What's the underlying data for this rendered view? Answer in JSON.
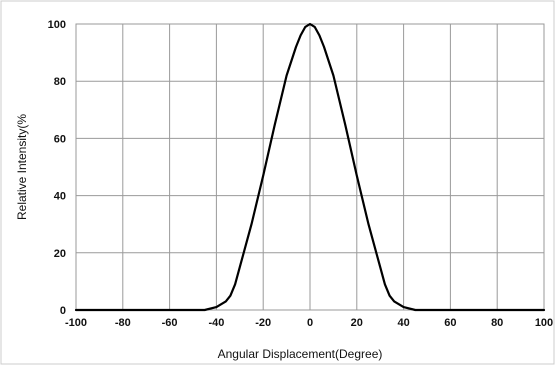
{
  "chart_data": {
    "type": "line",
    "title": "",
    "xlabel": "Angular  Displacement(Degree)",
    "ylabel": "Relative  Intensity(%",
    "xlim": [
      -100,
      100
    ],
    "ylim": [
      0,
      100
    ],
    "x_ticks": [
      "-100",
      "-80",
      "-60",
      "-40",
      "-20",
      "0",
      "20",
      "40",
      "60",
      "80",
      "100"
    ],
    "y_ticks": [
      "0",
      "20",
      "40",
      "60",
      "80",
      "100"
    ],
    "grid": true,
    "legend": "none",
    "line_color": "#000000",
    "grid_color": "#9a9a9a",
    "series": [
      {
        "x": [
          -100,
          -80,
          -60,
          -45,
          -40,
          -36,
          -34,
          -32,
          -30,
          -25,
          -20,
          -15,
          -10,
          -6,
          -4,
          -2,
          0,
          2,
          4,
          6,
          10,
          15,
          20,
          25,
          30,
          32,
          34,
          36,
          40,
          45,
          60,
          80,
          100
        ],
        "y": [
          0,
          0,
          0,
          0,
          1,
          3,
          5,
          9,
          15,
          30,
          47,
          65,
          82,
          92,
          96,
          99,
          100,
          99,
          96,
          92,
          82,
          65,
          47,
          30,
          15,
          9,
          5,
          3,
          1,
          0,
          0,
          0,
          0
        ]
      }
    ]
  }
}
